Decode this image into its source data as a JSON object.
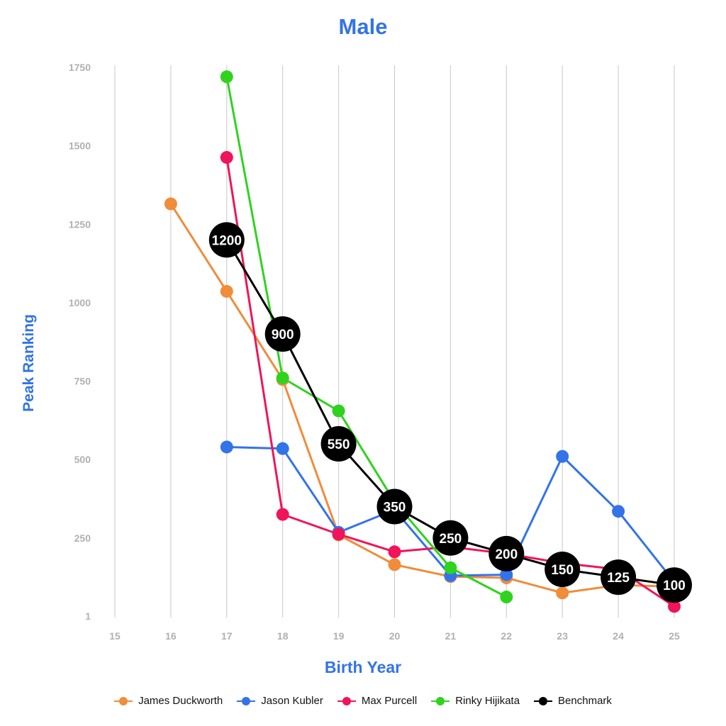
{
  "chart_data": {
    "type": "line",
    "title": "Male",
    "xlabel": "Birth Year",
    "ylabel": "Peak Ranking",
    "x": [
      15,
      16,
      17,
      18,
      19,
      20,
      21,
      22,
      23,
      24,
      25
    ],
    "x_tick_labels": [
      "15",
      "16",
      "17",
      "18",
      "19",
      "20",
      "21",
      "22",
      "23",
      "24",
      "25"
    ],
    "y_tick_labels": [
      "1",
      "250",
      "500",
      "750",
      "1000",
      "1250",
      "1500",
      "1750"
    ],
    "y_tick_values": [
      1,
      250,
      500,
      750,
      1000,
      1250,
      1500,
      1750
    ],
    "xlim": [
      15,
      25
    ],
    "ylim": [
      1,
      1750
    ],
    "grid": "vertical",
    "legend_position": "bottom",
    "series": [
      {
        "name": "James Duckworth",
        "color": "#f08c3a",
        "x": [
          16,
          17,
          18,
          19,
          20,
          21,
          22,
          23,
          24,
          25
        ],
        "values": [
          1315,
          1036,
          755,
          260,
          165,
          127,
          123,
          75,
          100,
          95
        ]
      },
      {
        "name": "Jason Kubler",
        "color": "#3373e8",
        "x": [
          17,
          18,
          19,
          20,
          21,
          22,
          23,
          24,
          25
        ],
        "values": [
          540,
          535,
          268,
          340,
          130,
          133,
          510,
          335,
          110
        ]
      },
      {
        "name": "Max Purcell",
        "color": "#f0145a",
        "x": [
          17,
          18,
          19,
          20,
          21,
          22,
          23,
          24,
          25
        ],
        "values": [
          1463,
          325,
          262,
          206,
          222,
          200,
          170,
          150,
          32
        ]
      },
      {
        "name": "Rinky Hijikata",
        "color": "#2fd31e",
        "x": [
          17,
          18,
          19,
          20,
          21,
          22
        ],
        "values": [
          1720,
          760,
          655,
          365,
          155,
          62
        ]
      },
      {
        "name": "Benchmark",
        "color": "#000000",
        "x": [
          17,
          18,
          19,
          20,
          21,
          22,
          23,
          24,
          25
        ],
        "values": [
          1200,
          900,
          550,
          350,
          250,
          200,
          150,
          125,
          100
        ],
        "point_labels": [
          "1200",
          "900",
          "550",
          "350",
          "250",
          "200",
          "150",
          "125",
          "100"
        ]
      }
    ]
  },
  "colors": {
    "title": "#3373e8",
    "axis_title": "#3373e8",
    "tick_label": "#b0b0b0",
    "grid": "#c8c8c8",
    "marker_label": "#ffffff"
  }
}
